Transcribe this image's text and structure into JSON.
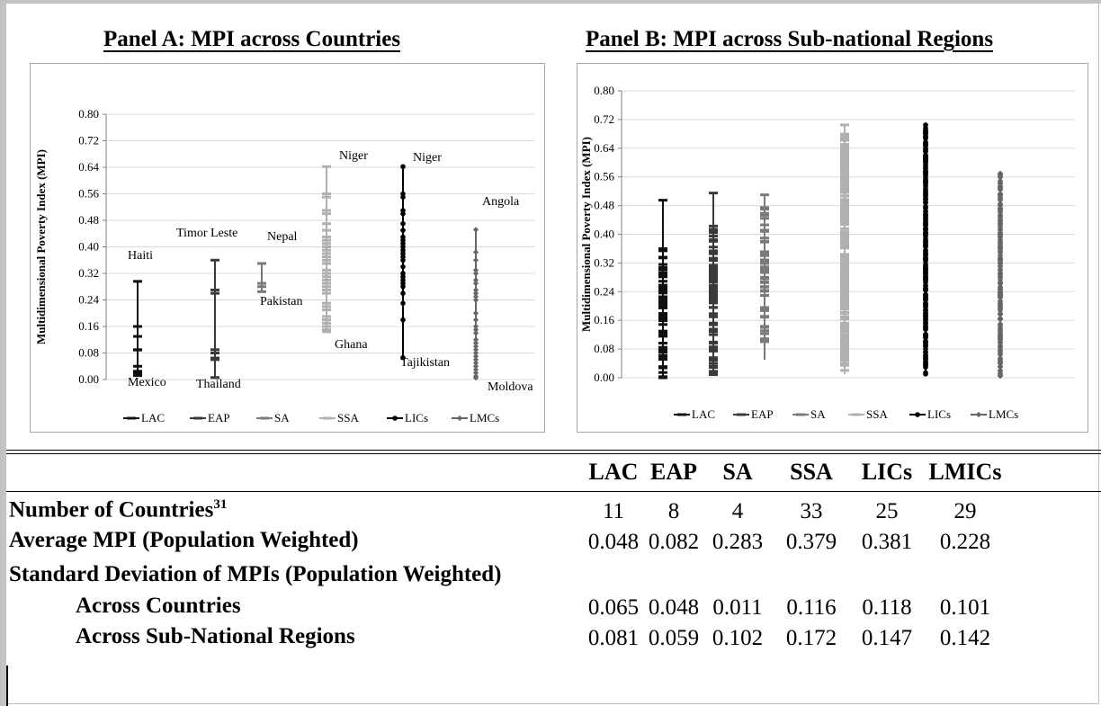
{
  "panelA": {
    "title": "Panel A: MPI across Countries",
    "annotations": {
      "lac_top": "Haiti",
      "lac_bottom": "Mexico",
      "eap_top": "Timor Leste",
      "eap_bottom": "Thailand",
      "sa_top": "Nepal",
      "sa_bottom": "Pakistan",
      "ssa_top": "Niger",
      "ssa_bottom": "Ghana",
      "lics_top": "Niger",
      "lics_bottom": "Tajikistan",
      "lmcs_top": "Angola",
      "lmcs_bottom": "Moldova"
    }
  },
  "panelB": {
    "title": "Panel B: MPI across Sub-national Regions"
  },
  "colors": {
    "LAC": "#111111",
    "EAP": "#3a3a3a",
    "SA": "#7a7a7a",
    "SSA": "#b0b0b0",
    "LICs": "#000000",
    "LMCs": "#666666",
    "grid": "#d9d9d9"
  },
  "chart_data": [
    {
      "type": "scatter",
      "title": "Panel A: MPI across Countries",
      "ylabel": "Multidimensional Poverty Index (MPI)",
      "xlabel": "",
      "ylim": [
        0,
        0.8
      ],
      "yticks": [
        "0.00",
        "0.08",
        "0.16",
        "0.24",
        "0.32",
        "0.40",
        "0.48",
        "0.56",
        "0.64",
        "0.72",
        "0.80"
      ],
      "grid": true,
      "legend_position": "bottom",
      "series": [
        {
          "name": "LAC",
          "marker": "dash",
          "values": [
            0.296,
            0.16,
            0.13,
            0.09,
            0.089,
            0.04,
            0.025,
            0.018,
            0.02,
            0.015,
            0.012
          ]
        },
        {
          "name": "EAP",
          "marker": "dash",
          "values": [
            0.36,
            0.27,
            0.26,
            0.09,
            0.08,
            0.065,
            0.06,
            0.006
          ]
        },
        {
          "name": "SA",
          "marker": "dash",
          "values": [
            0.35,
            0.29,
            0.28,
            0.265
          ]
        },
        {
          "name": "SSA",
          "marker": "dash",
          "values": [
            0.642,
            0.56,
            0.55,
            0.51,
            0.5,
            0.47,
            0.45,
            0.43,
            0.42,
            0.41,
            0.4,
            0.39,
            0.38,
            0.37,
            0.36,
            0.35,
            0.33,
            0.32,
            0.31,
            0.3,
            0.29,
            0.28,
            0.27,
            0.26,
            0.23,
            0.22,
            0.21,
            0.19,
            0.18,
            0.17,
            0.16,
            0.15,
            0.144
          ]
        },
        {
          "name": "LICs",
          "marker": "dot",
          "values": [
            0.642,
            0.56,
            0.55,
            0.51,
            0.5,
            0.47,
            0.45,
            0.43,
            0.42,
            0.41,
            0.4,
            0.39,
            0.38,
            0.37,
            0.36,
            0.34,
            0.32,
            0.31,
            0.3,
            0.29,
            0.28,
            0.26,
            0.23,
            0.18,
            0.066
          ]
        },
        {
          "name": "LMCs",
          "marker": "diamond",
          "values": [
            0.452,
            0.384,
            0.36,
            0.33,
            0.32,
            0.3,
            0.29,
            0.27,
            0.26,
            0.25,
            0.24,
            0.2,
            0.18,
            0.16,
            0.15,
            0.14,
            0.12,
            0.11,
            0.1,
            0.09,
            0.08,
            0.07,
            0.06,
            0.05,
            0.04,
            0.03,
            0.02,
            0.01,
            0.005
          ]
        }
      ]
    },
    {
      "type": "scatter",
      "title": "Panel B: MPI across Sub-national Regions",
      "ylabel": "Multidimensional Poverty Index (MPI)",
      "xlabel": "",
      "ylim": [
        0,
        0.8
      ],
      "yticks": [
        "0.00",
        "0.08",
        "0.16",
        "0.24",
        "0.32",
        "0.40",
        "0.48",
        "0.56",
        "0.64",
        "0.72",
        "0.80"
      ],
      "grid": true,
      "legend_position": "bottom",
      "series": [
        {
          "name": "LAC",
          "marker": "dash",
          "range": [
            0.0,
            0.495
          ],
          "dense_range": [
            0.0,
            0.36
          ]
        },
        {
          "name": "EAP",
          "marker": "dash",
          "range": [
            0.005,
            0.515
          ],
          "dense_range": [
            0.005,
            0.44
          ]
        },
        {
          "name": "SA",
          "marker": "dash",
          "range": [
            0.05,
            0.51
          ],
          "dense_range": [
            0.08,
            0.48
          ]
        },
        {
          "name": "SSA",
          "marker": "dash",
          "range": [
            0.01,
            0.705
          ],
          "dense_range": [
            0.02,
            0.68
          ]
        },
        {
          "name": "LICs",
          "marker": "dot",
          "range": [
            0.01,
            0.705
          ],
          "dense_range": [
            0.01,
            0.7
          ]
        },
        {
          "name": "LMCs",
          "marker": "diamond",
          "range": [
            0.0,
            0.57
          ],
          "dense_range": [
            0.0,
            0.57
          ]
        }
      ]
    },
    {
      "type": "table",
      "columns": [
        "LAC",
        "EAP",
        "SA",
        "SSA",
        "LICs",
        "LMICs"
      ],
      "rows": [
        {
          "label": "Number of Countries",
          "footnote": "31",
          "values": [
            "11",
            "8",
            "4",
            "33",
            "25",
            "29"
          ]
        },
        {
          "label": "Average MPI (Population Weighted)",
          "values": [
            "0.048",
            "0.082",
            "0.283",
            "0.379",
            "0.381",
            "0.228"
          ]
        },
        {
          "label": "Standard Deviation of MPIs (Population Weighted)",
          "values": []
        },
        {
          "label": "Across Countries",
          "values": [
            "0.065",
            "0.048",
            "0.011",
            "0.116",
            "0.118",
            "0.101"
          ]
        },
        {
          "label": "Across Sub-National Regions",
          "values": [
            "0.081",
            "0.059",
            "0.102",
            "0.172",
            "0.147",
            "0.142"
          ]
        }
      ]
    }
  ],
  "legend": [
    "LAC",
    "EAP",
    "SA",
    "SSA",
    "LICs",
    "LMCs"
  ]
}
